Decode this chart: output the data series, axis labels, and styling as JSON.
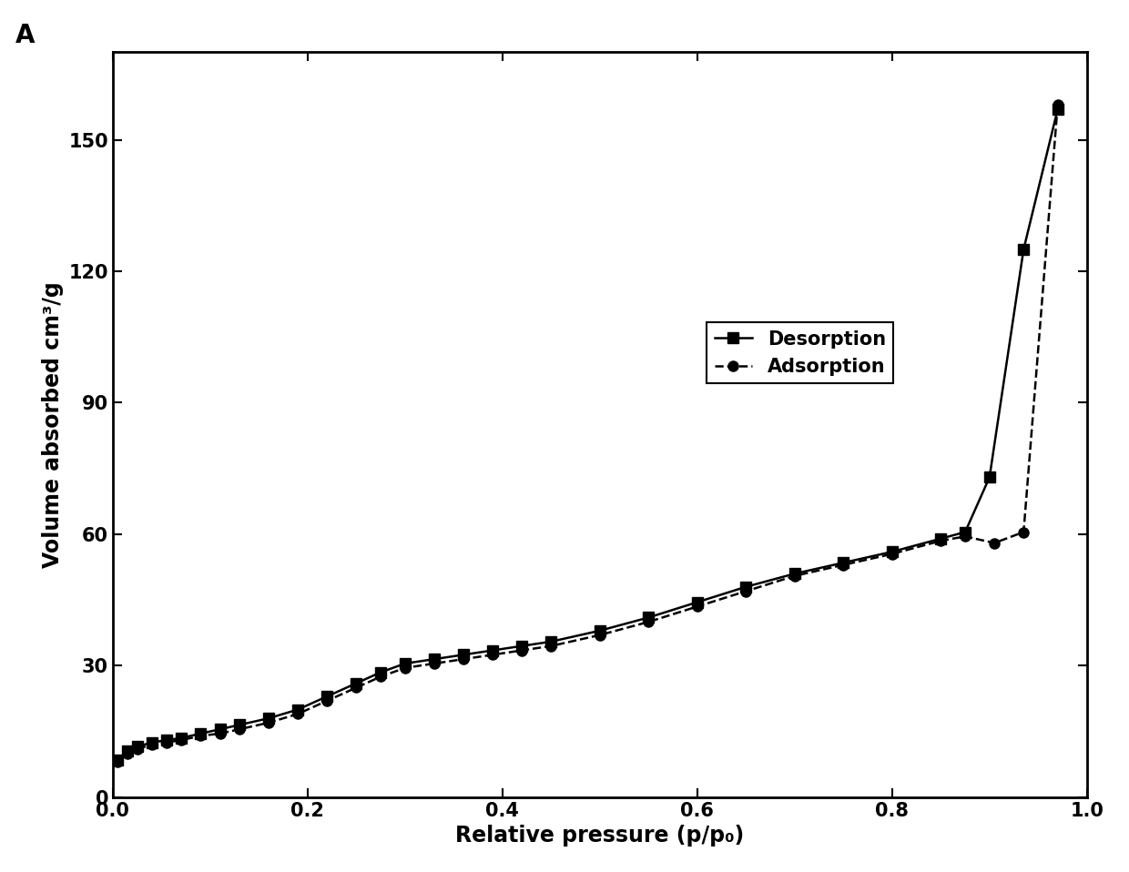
{
  "title_label": "A",
  "xlabel": "Relative pressure (p/p₀)",
  "ylabel": "Volume absorbed cm³/g",
  "xlim": [
    0.0,
    1.0
  ],
  "ylim": [
    0,
    170
  ],
  "yticks": [
    0,
    30,
    60,
    90,
    120,
    150
  ],
  "xticks": [
    0.0,
    0.2,
    0.4,
    0.6,
    0.8,
    1.0
  ],
  "desorption_x": [
    0.005,
    0.015,
    0.025,
    0.04,
    0.055,
    0.07,
    0.09,
    0.11,
    0.13,
    0.16,
    0.19,
    0.22,
    0.25,
    0.275,
    0.3,
    0.33,
    0.36,
    0.39,
    0.42,
    0.45,
    0.5,
    0.55,
    0.6,
    0.65,
    0.7,
    0.75,
    0.8,
    0.85,
    0.875,
    0.9,
    0.935,
    0.97
  ],
  "desorption_y": [
    8.5,
    10.5,
    11.5,
    12.5,
    13.0,
    13.5,
    14.5,
    15.5,
    16.5,
    18.0,
    20.0,
    23.0,
    26.0,
    28.5,
    30.5,
    31.5,
    32.5,
    33.5,
    34.5,
    35.5,
    38.0,
    41.0,
    44.5,
    48.0,
    51.0,
    53.5,
    56.0,
    59.0,
    60.5,
    73.0,
    125.0,
    157.0
  ],
  "adsorption_x": [
    0.005,
    0.015,
    0.025,
    0.04,
    0.055,
    0.07,
    0.09,
    0.11,
    0.13,
    0.16,
    0.19,
    0.22,
    0.25,
    0.275,
    0.3,
    0.33,
    0.36,
    0.39,
    0.42,
    0.45,
    0.5,
    0.55,
    0.6,
    0.65,
    0.7,
    0.75,
    0.8,
    0.85,
    0.875,
    0.905,
    0.935,
    0.97
  ],
  "adsorption_y": [
    8.0,
    10.0,
    11.0,
    12.0,
    12.5,
    13.0,
    14.0,
    14.5,
    15.5,
    17.0,
    19.0,
    22.0,
    25.0,
    27.5,
    29.5,
    30.5,
    31.5,
    32.5,
    33.5,
    34.5,
    37.0,
    40.0,
    43.5,
    47.0,
    50.5,
    53.0,
    55.5,
    58.5,
    59.5,
    58.0,
    60.5,
    158.0
  ],
  "desorption_color": "#000000",
  "adsorption_color": "#000000",
  "desorption_linestyle": "-",
  "adsorption_linestyle": "--",
  "desorption_marker": "s",
  "adsorption_marker": "o",
  "linewidth": 1.8,
  "markersize": 8,
  "legend_fontsize": 15,
  "axis_label_fontsize": 17,
  "tick_fontsize": 15,
  "panel_label_fontsize": 20,
  "background_color": "#ffffff"
}
